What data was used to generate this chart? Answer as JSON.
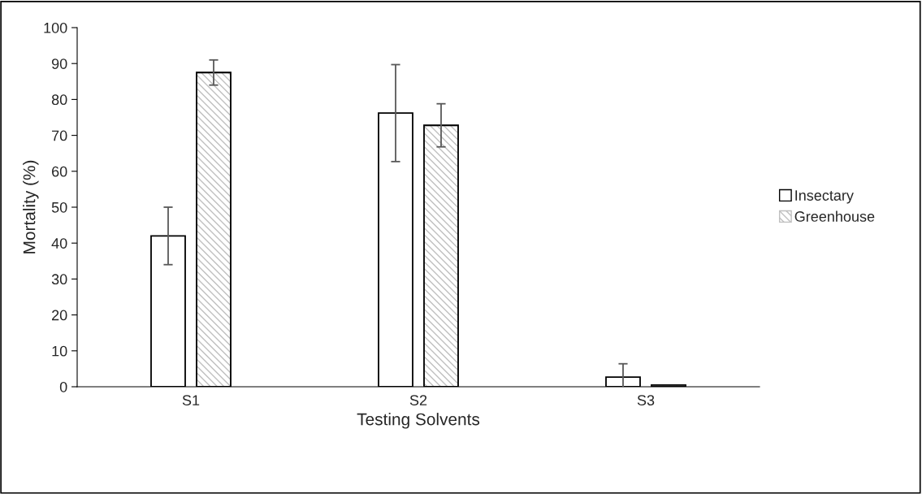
{
  "chart_data": {
    "type": "bar",
    "xlabel": "Testing Solvents",
    "ylabel": "Mortality (%)",
    "categories": [
      "S1",
      "S2",
      "S3"
    ],
    "series": [
      {
        "name": "Insectary",
        "color": "#ffffff",
        "values": [
          42.0,
          76.2,
          2.7
        ],
        "errors": [
          8.0,
          13.5,
          3.7
        ]
      },
      {
        "name": "Greenhouse",
        "color": "#bfbfbf",
        "values": [
          87.5,
          72.8,
          0.5
        ],
        "errors": [
          3.5,
          6.0,
          null
        ]
      }
    ],
    "ylim": [
      0,
      100
    ],
    "yticks": [
      0,
      10,
      20,
      30,
      40,
      50,
      60,
      70,
      80,
      90,
      100
    ],
    "grid": false,
    "legend": "right"
  }
}
